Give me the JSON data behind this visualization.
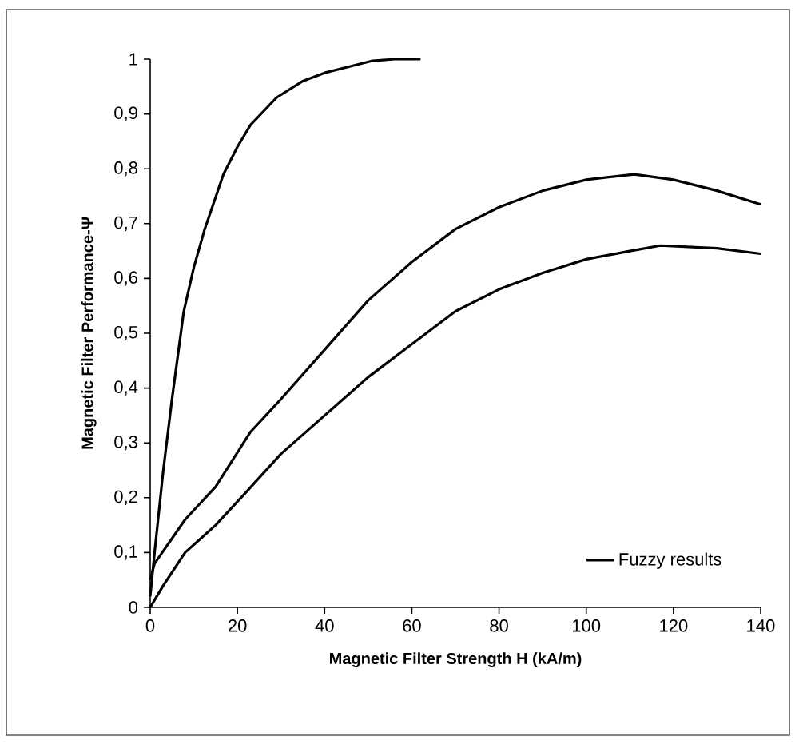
{
  "chart_data": {
    "type": "line",
    "xlabel": "Magnetic Filter Strength H (kA/m)",
    "ylabel": "Magnetic Filter Performance-Ψ",
    "xlim": [
      0,
      140
    ],
    "ylim": [
      0,
      1
    ],
    "xticks": [
      0,
      20,
      40,
      60,
      80,
      100,
      120,
      140
    ],
    "yticks": [
      0,
      {
        "value": 0.1,
        "label": "0,1"
      },
      {
        "value": 0.2,
        "label": "0,2"
      },
      {
        "value": 0.3,
        "label": "0,3"
      },
      {
        "value": 0.4,
        "label": "0,4"
      },
      {
        "value": 0.5,
        "label": "0,5"
      },
      {
        "value": 0.6,
        "label": "0,6"
      },
      {
        "value": 0.7,
        "label": "0,7"
      },
      {
        "value": 0.8,
        "label": "0,8"
      },
      {
        "value": 0.9,
        "label": "0,9"
      },
      1
    ],
    "legend": "bottom right",
    "grid": false,
    "series": [
      {
        "name": "Fuzzy results",
        "color": "#000000",
        "x": [
          0,
          1,
          3,
          5,
          7.7,
          10,
          12.5,
          16.8,
          20,
          23,
          29,
          35,
          40,
          45,
          51,
          56,
          62
        ],
        "values": [
          0.02,
          0.1,
          0.25,
          0.38,
          0.54,
          0.62,
          0.69,
          0.79,
          0.84,
          0.88,
          0.93,
          0.96,
          0.975,
          0.985,
          0.997,
          1.0,
          1.0
        ]
      },
      {
        "color": "#000000",
        "x": [
          0,
          1,
          8,
          15,
          23,
          30,
          40,
          50,
          60,
          70,
          80,
          90,
          100,
          111,
          120,
          130,
          140
        ],
        "values": [
          0.05,
          0.08,
          0.16,
          0.22,
          0.32,
          0.38,
          0.47,
          0.56,
          0.63,
          0.69,
          0.73,
          0.76,
          0.78,
          0.79,
          0.78,
          0.76,
          0.735
        ]
      },
      {
        "color": "#000000",
        "x": [
          0,
          3,
          8,
          15,
          22,
          30,
          40,
          50,
          60,
          70,
          80,
          90,
          100,
          110,
          117,
          130,
          140
        ],
        "values": [
          0,
          0.04,
          0.1,
          0.15,
          0.21,
          0.28,
          0.35,
          0.42,
          0.48,
          0.54,
          0.58,
          0.61,
          0.635,
          0.65,
          0.66,
          0.655,
          0.645
        ]
      }
    ]
  }
}
